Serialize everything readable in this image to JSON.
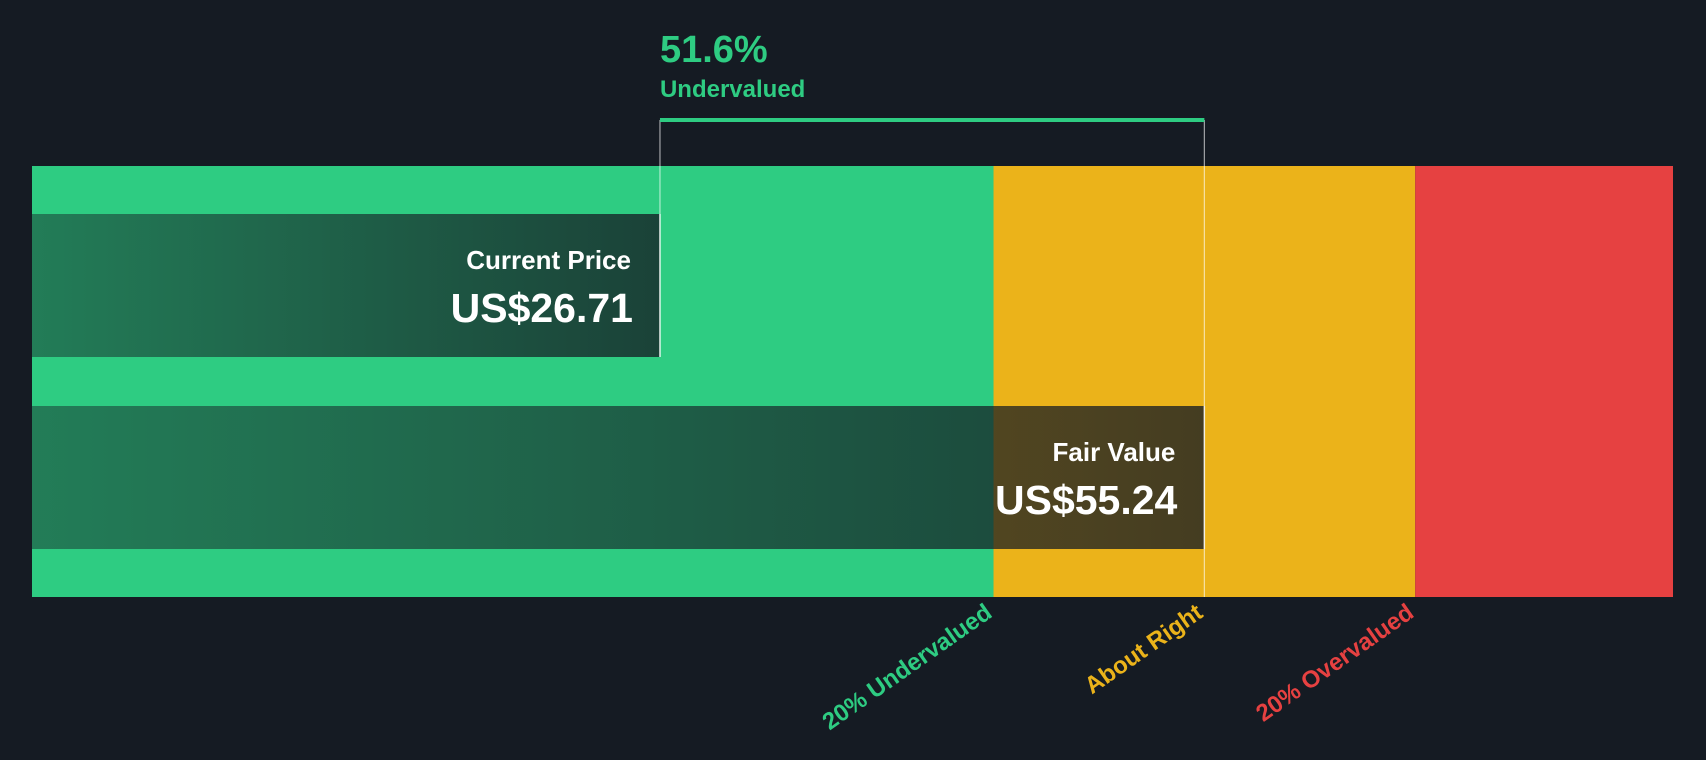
{
  "chart_data": {
    "type": "valuation",
    "categories": [
      "Current Price",
      "Fair Value"
    ],
    "values": [
      26.71,
      55.24
    ],
    "value_labels": [
      "US$26.71",
      "US$55.24"
    ],
    "annotation": {
      "value": 51.6,
      "value_label": "51.6%",
      "text": "Undervalued",
      "color": "#2ecc82"
    },
    "thresholds": [
      {
        "label": "20% Undervalued",
        "value": 44.19,
        "color": "#2ecc82"
      },
      {
        "label": "About Right",
        "value": 66.29,
        "color": "#ebb31a",
        "label_value": 55.24
      },
      {
        "label": "20% Overvalued",
        "value": 79.8,
        "color": "#e64141",
        "label_value": 66.29
      }
    ],
    "xlim": [
      -6.2,
      79.8
    ]
  }
}
